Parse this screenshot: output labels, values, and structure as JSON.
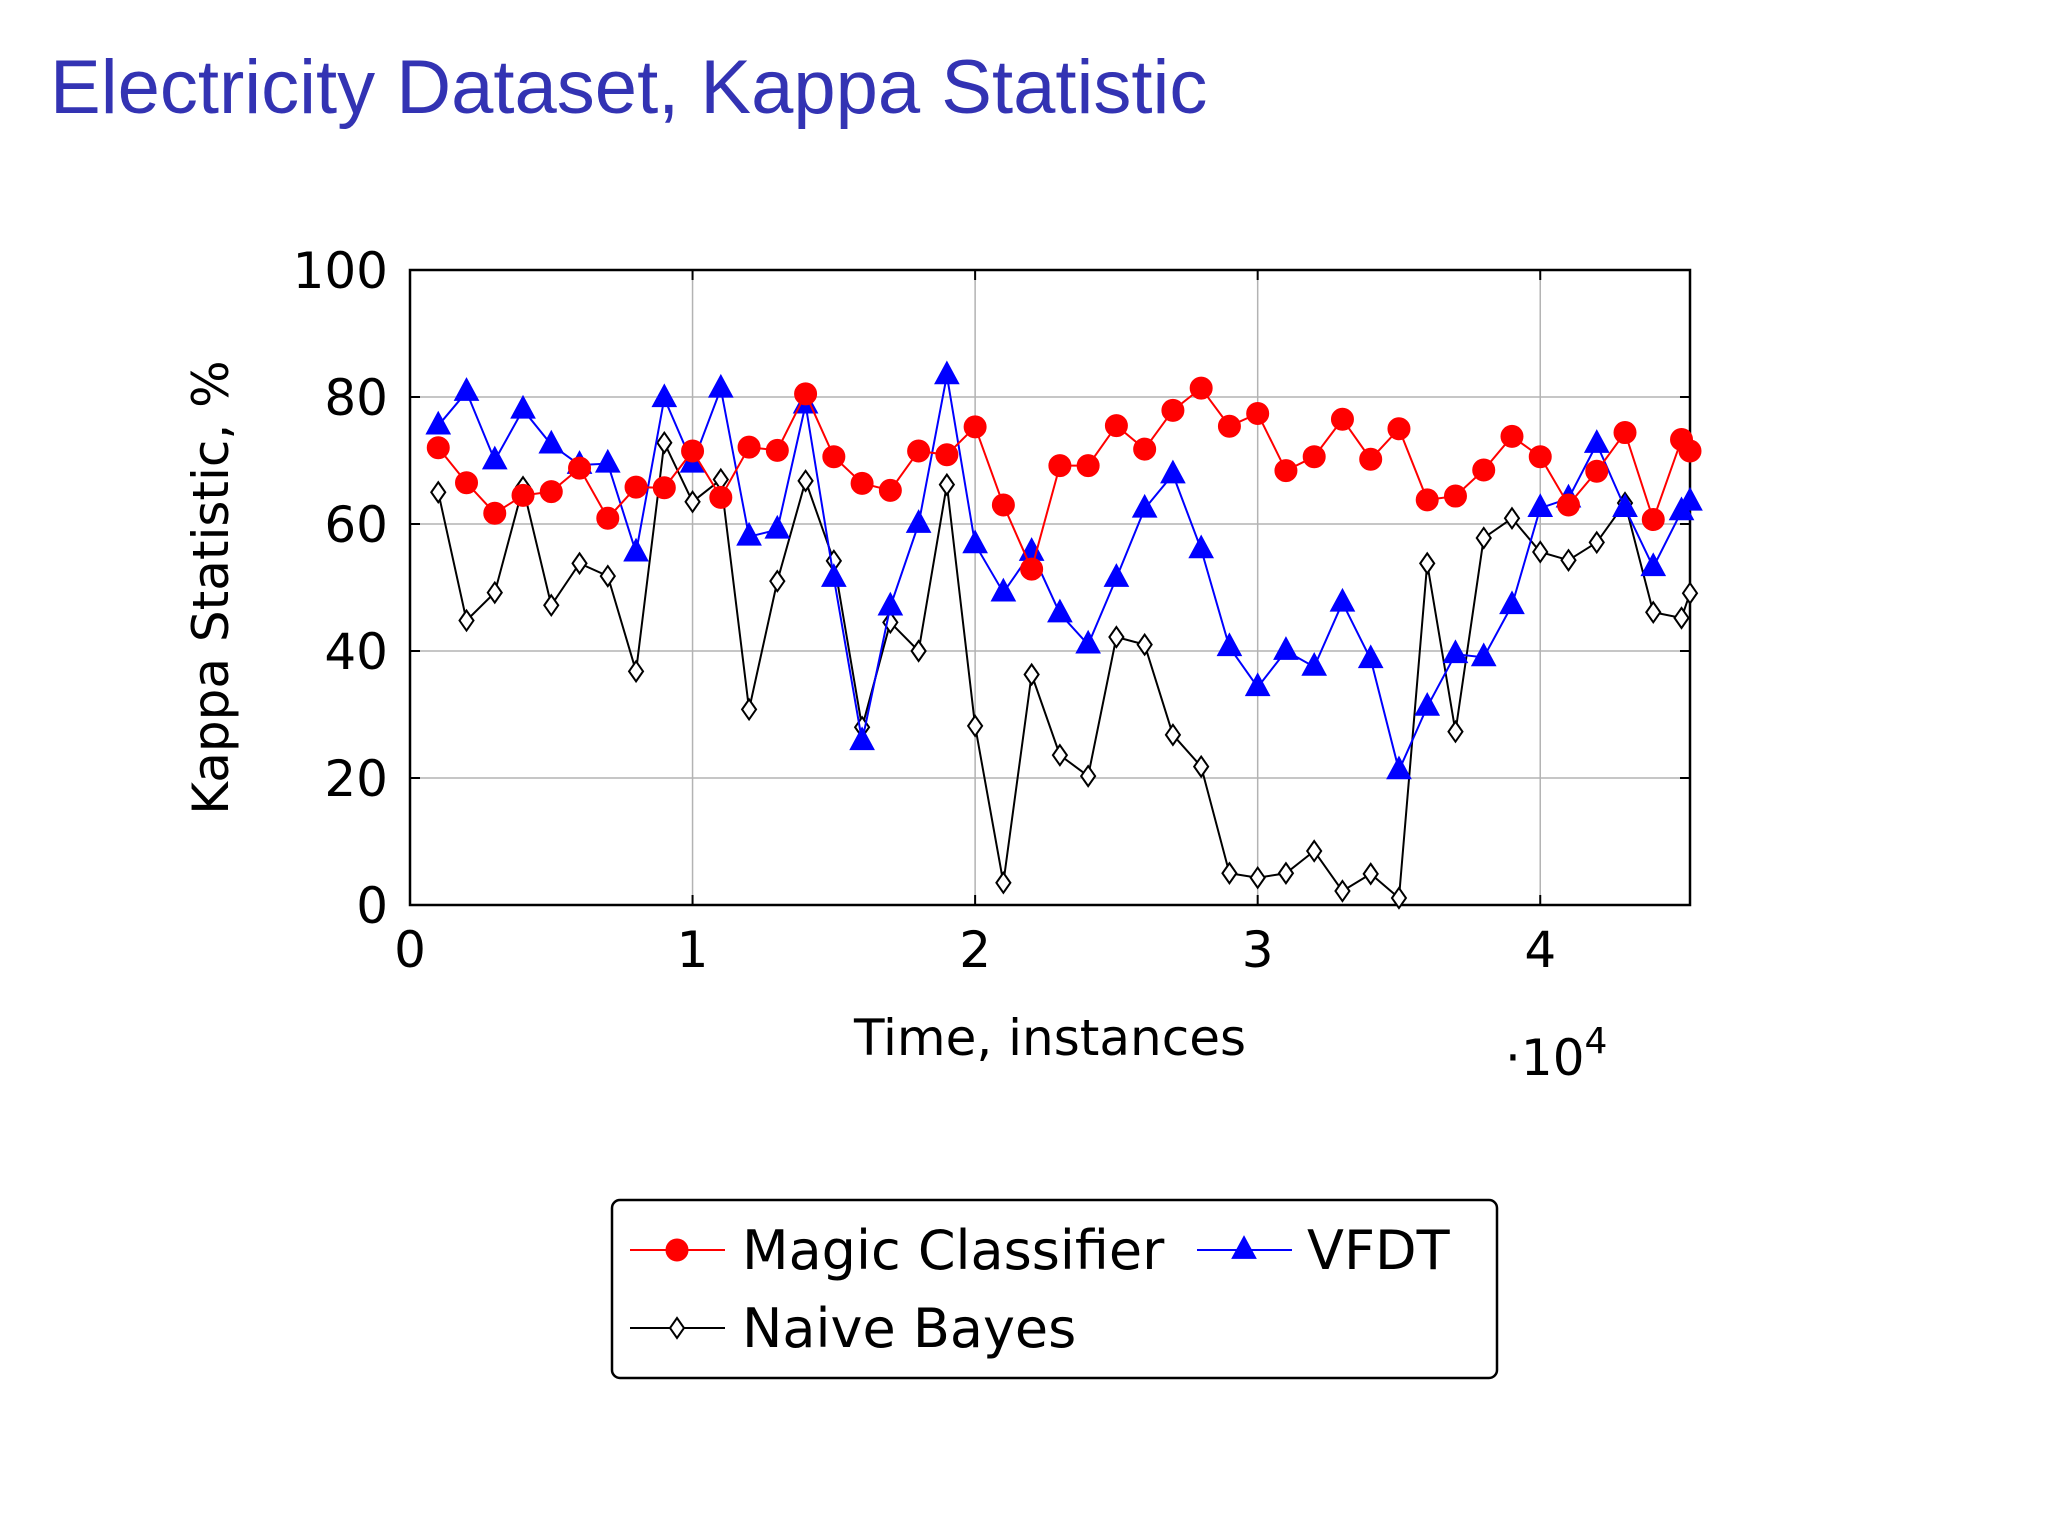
{
  "slide": {
    "title": "Electricity Dataset, Kappa Statistic"
  },
  "chart_data": {
    "type": "line",
    "title": "",
    "xlabel": "Time, instances",
    "ylabel": "Kappa Statistic, %",
    "x_scale_label": "·10",
    "x_scale_exponent": "4",
    "xlim": [
      0,
      4.53
    ],
    "ylim": [
      0,
      100
    ],
    "xticks": [
      0,
      1,
      2,
      3,
      4
    ],
    "xtick_labels": [
      "0",
      "1",
      "2",
      "3",
      "4"
    ],
    "yticks": [
      0,
      20,
      40,
      60,
      80,
      100
    ],
    "ytick_labels": [
      "0",
      "20",
      "40",
      "60",
      "80",
      "100"
    ],
    "grid": true,
    "legend_placement": "below",
    "x": [
      0.1,
      0.2,
      0.3,
      0.4,
      0.5,
      0.6,
      0.7,
      0.8,
      0.9,
      1.0,
      1.1,
      1.2,
      1.3,
      1.4,
      1.5,
      1.6,
      1.7,
      1.8,
      1.9,
      2.0,
      2.1,
      2.2,
      2.3,
      2.4,
      2.5,
      2.6,
      2.7,
      2.8,
      2.9,
      3.0,
      3.1,
      3.2,
      3.3,
      3.4,
      3.5,
      3.6,
      3.7,
      3.8,
      3.9,
      4.0,
      4.1,
      4.2,
      4.3,
      4.4,
      4.5,
      4.53
    ],
    "series": [
      {
        "name": "Magic Classifier",
        "color": "#ff0000",
        "marker": "circle",
        "values": [
          72,
          66.5,
          61.7,
          64.5,
          65.1,
          68.8,
          60.9,
          65.8,
          65.7,
          71.5,
          64.2,
          72.1,
          71.6,
          80.5,
          70.6,
          66.4,
          65.3,
          71.5,
          70.9,
          75.3,
          63,
          52.9,
          69.2,
          69.2,
          75.5,
          71.8,
          77.9,
          81.4,
          75.4,
          77.4,
          68.4,
          70.6,
          76.5,
          70.2,
          75,
          63.8,
          64.4,
          68.5,
          73.8,
          70.6,
          63,
          68.3,
          74.4,
          60.7,
          73.3,
          71.5
        ]
      },
      {
        "name": "VFDT",
        "color": "#0000ff",
        "marker": "triangle",
        "values": [
          75.5,
          80.8,
          70,
          78,
          72.5,
          69.3,
          69.5,
          55.5,
          79.8,
          69.5,
          81.3,
          58,
          59.1,
          78.8,
          51.5,
          25.8,
          47,
          60,
          83.4,
          56.8,
          49.2,
          55.6,
          45.9,
          41,
          51.5,
          62.4,
          67.8,
          56,
          40.6,
          34.3,
          40,
          37.5,
          47.6,
          38.7,
          21.2,
          31.2,
          39.5,
          39,
          47.2,
          62.5,
          64,
          72.6,
          62.5,
          53.2,
          62,
          63.5
        ]
      },
      {
        "name": "Naive Bayes",
        "color": "#000000",
        "marker": "diamond",
        "values": [
          65,
          44.8,
          49.2,
          65.8,
          47.2,
          53.8,
          51.8,
          36.8,
          72.8,
          63.5,
          67,
          30.8,
          51,
          66.8,
          54.2,
          28,
          44.5,
          40,
          66.2,
          28.2,
          3.5,
          36.3,
          23.6,
          20.3,
          42.2,
          41,
          26.8,
          21.8,
          5,
          4.3,
          5,
          8.5,
          2.2,
          4.9,
          1.1,
          53.8,
          27.3,
          57.8,
          60.9,
          55.6,
          54.3,
          57.1,
          63.3,
          46.1,
          45.2,
          49.1
        ]
      }
    ]
  }
}
